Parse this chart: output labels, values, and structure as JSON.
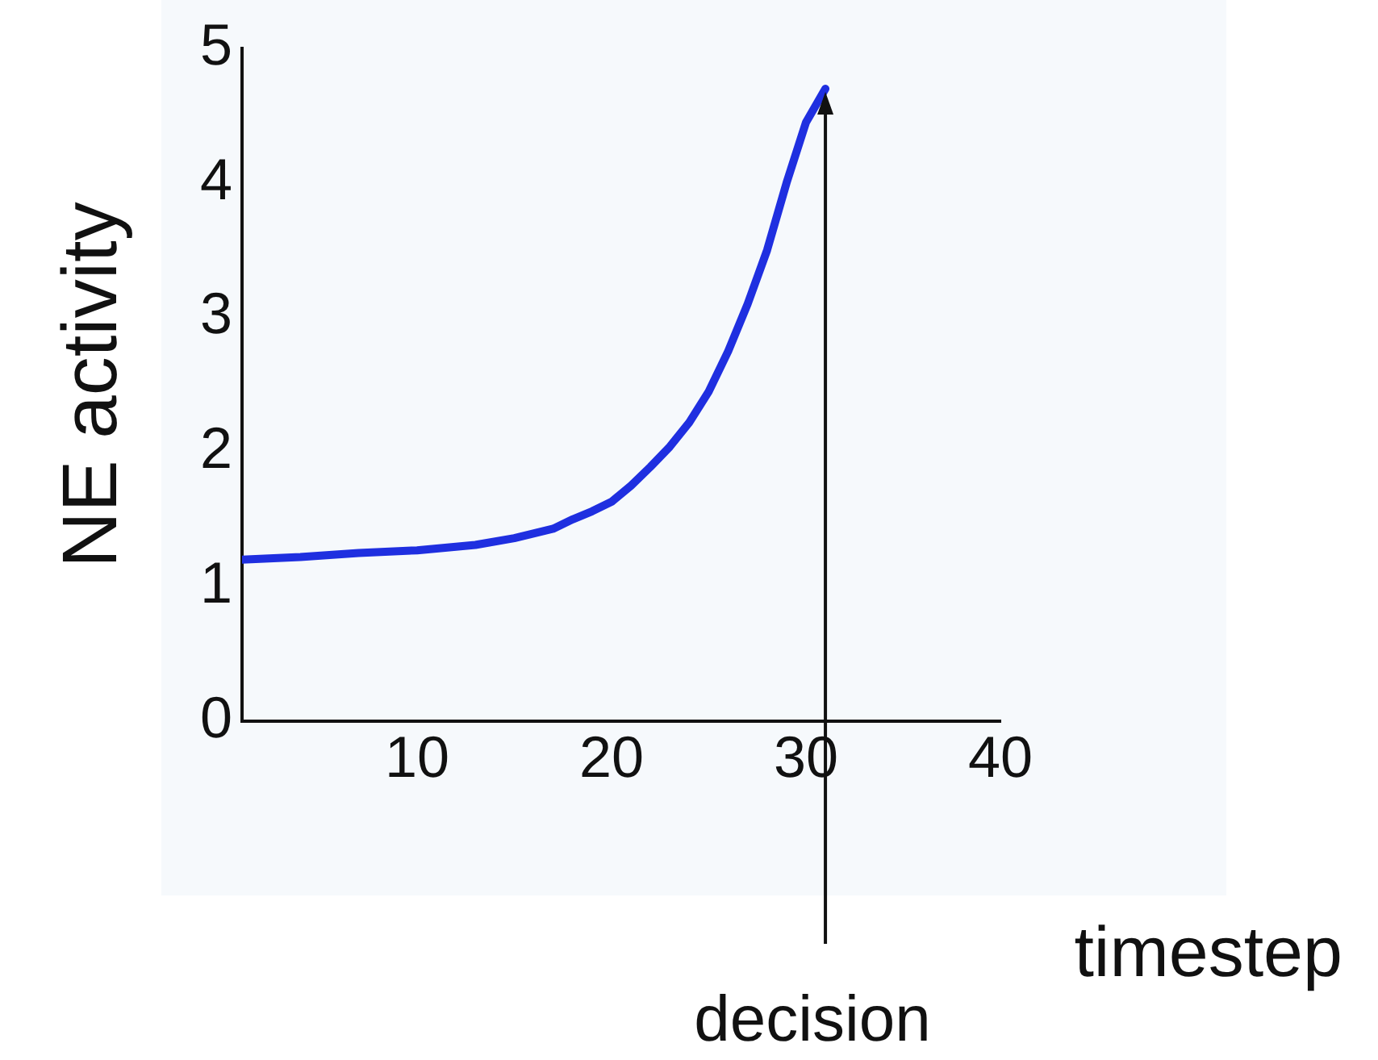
{
  "chart_data": {
    "type": "line",
    "xlabel": "timestep",
    "ylabel": "NE activity",
    "x": [
      1,
      4,
      7,
      10,
      13,
      15,
      17,
      18,
      19,
      20,
      21,
      22,
      23,
      24,
      25,
      26,
      27,
      28,
      29,
      30,
      31
    ],
    "series": [
      {
        "color": "#1f2fe0",
        "values": [
          1.2,
          1.22,
          1.25,
          1.27,
          1.31,
          1.36,
          1.43,
          1.5,
          1.56,
          1.63,
          1.75,
          1.89,
          2.04,
          2.22,
          2.45,
          2.75,
          3.1,
          3.5,
          4.0,
          4.45,
          4.7
        ]
      }
    ],
    "xlim": [
      1,
      40
    ],
    "xticks": [
      10,
      20,
      30,
      40
    ],
    "ylim": [
      0,
      5
    ],
    "yticks": [
      0,
      1,
      2,
      3,
      4,
      5
    ],
    "grid": false,
    "legend": false,
    "marker": "none",
    "line_style": "solid",
    "annotations": [
      {
        "text": "decision",
        "x": 31,
        "y": 4.7
      }
    ]
  }
}
